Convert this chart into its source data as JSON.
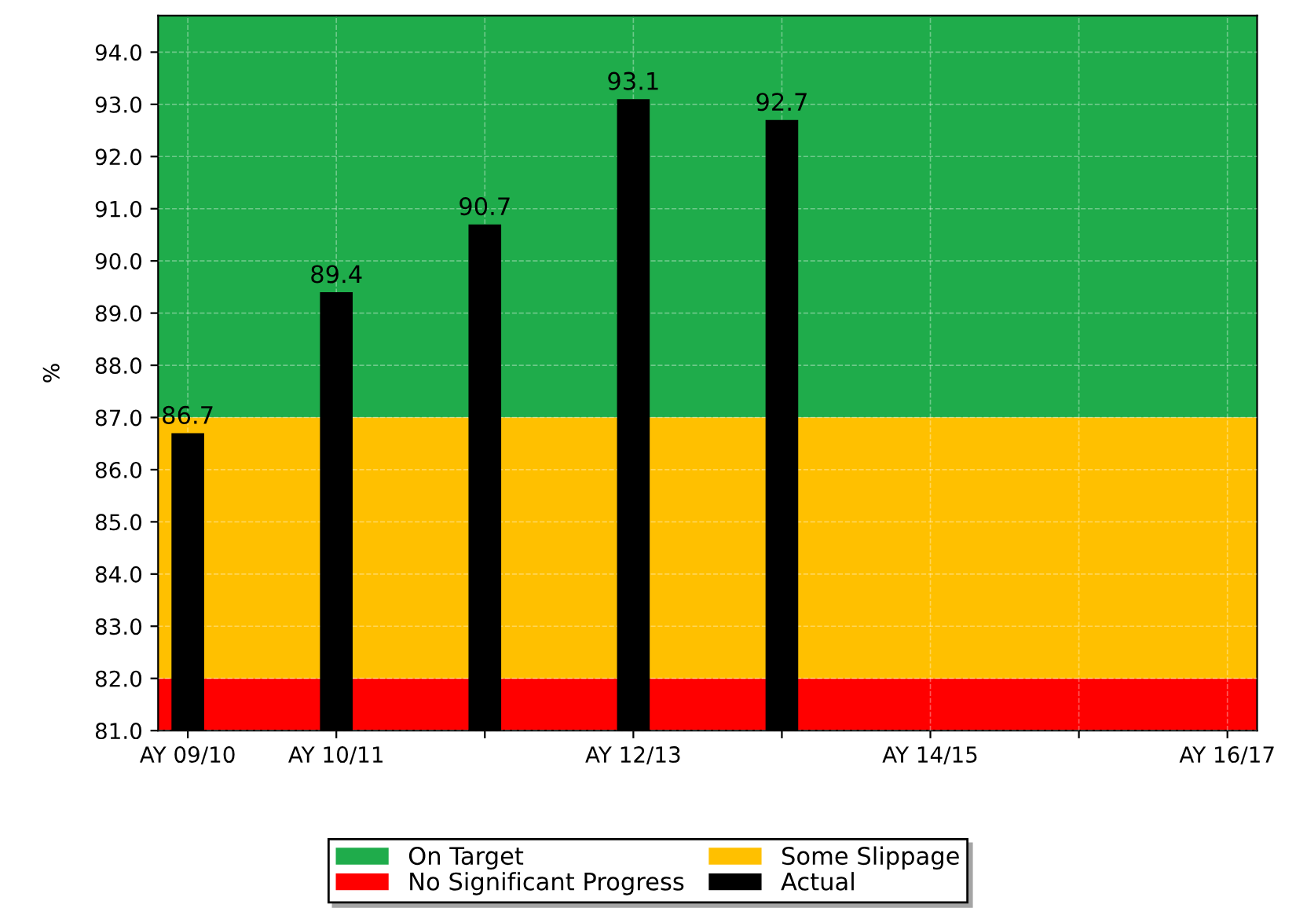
{
  "chart_data": {
    "type": "bar",
    "ylabel": "%",
    "categories": [
      "AY 09/10",
      "AY 10/11",
      null,
      "AY 12/13",
      null,
      "AY 14/15",
      null,
      "AY 16/17"
    ],
    "series": [
      {
        "name": "Actual",
        "color": "#000000",
        "values": [
          86.7,
          89.4,
          90.7,
          93.1,
          92.7,
          null,
          null,
          null
        ]
      }
    ],
    "bands": [
      {
        "axis": "y",
        "from": 87.0,
        "to": 94.7,
        "label": "On Target",
        "color": "#1fac4b"
      },
      {
        "axis": "y",
        "from": 81.0,
        "to": 82.0,
        "label": "No Significant Progress",
        "color": "#ff0000"
      },
      {
        "axis": "y",
        "from": 82.0,
        "to": 87.0,
        "label": "Some Slippage",
        "color": "#ffc000"
      }
    ],
    "ylim": [
      81.0,
      94.7
    ],
    "yticks": [
      {
        "value": 81,
        "label": "81.0"
      },
      {
        "value": 82,
        "label": "82.0"
      },
      {
        "value": 83,
        "label": "83.0"
      },
      {
        "value": 84,
        "label": "84.0"
      },
      {
        "value": 85,
        "label": "85.0"
      },
      {
        "value": 86,
        "label": "86.0"
      },
      {
        "value": 87,
        "label": "87.0"
      },
      {
        "value": 88,
        "label": "88.0"
      },
      {
        "value": 89,
        "label": "89.0"
      },
      {
        "value": 90,
        "label": "90.0"
      },
      {
        "value": 91,
        "label": "91.0"
      },
      {
        "value": 92,
        "label": "92.0"
      },
      {
        "value": 93,
        "label": "93.0"
      },
      {
        "value": 94,
        "label": "94.0"
      }
    ],
    "data_labels": true,
    "grid": true,
    "legend": "bottom"
  }
}
